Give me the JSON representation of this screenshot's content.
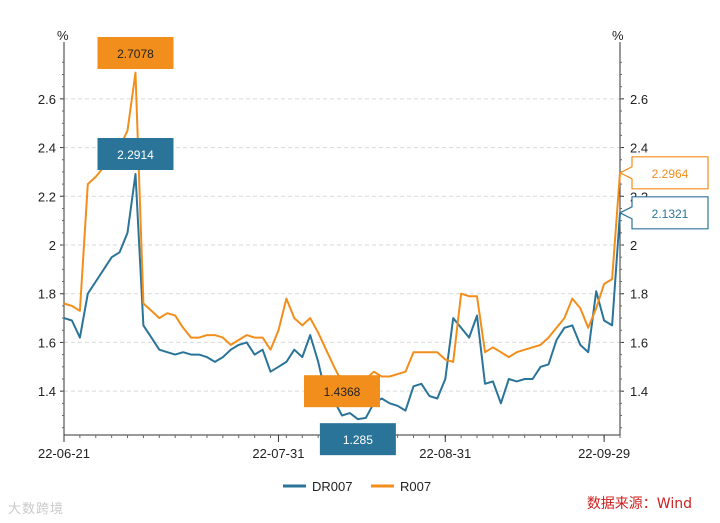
{
  "chart_data": {
    "type": "line",
    "y_unit": "%",
    "ylim": [
      1.22,
      2.78
    ],
    "yticks": [
      1.4,
      1.6,
      1.8,
      2,
      2.2,
      2.4,
      2.6
    ],
    "ytick_labels": [
      "1.4",
      "1.6",
      "1.8",
      "2",
      "2.2",
      "2.4",
      "2.6"
    ],
    "grid": true,
    "x_labels": [
      "22-06-21",
      "22-07-31",
      "22-08-31",
      "22-09-29"
    ],
    "x_tick_index": [
      0,
      27,
      48,
      68
    ],
    "legend_position": "bottom",
    "series": [
      {
        "name": "DR007",
        "color": "#2b7499",
        "values": [
          1.7,
          1.69,
          1.62,
          1.8,
          1.85,
          1.9,
          1.95,
          1.97,
          2.05,
          2.2914,
          1.67,
          1.62,
          1.57,
          1.56,
          1.55,
          1.56,
          1.55,
          1.55,
          1.54,
          1.52,
          1.54,
          1.57,
          1.59,
          1.6,
          1.55,
          1.57,
          1.48,
          1.5,
          1.52,
          1.57,
          1.54,
          1.63,
          1.52,
          1.38,
          1.36,
          1.3,
          1.31,
          1.285,
          1.29,
          1.35,
          1.37,
          1.35,
          1.34,
          1.32,
          1.42,
          1.43,
          1.38,
          1.37,
          1.45,
          1.7,
          1.66,
          1.62,
          1.71,
          1.43,
          1.44,
          1.35,
          1.45,
          1.44,
          1.45,
          1.45,
          1.5,
          1.51,
          1.61,
          1.66,
          1.67,
          1.59,
          1.56,
          1.81,
          1.69,
          1.67,
          2.1321
        ],
        "labels": [
          {
            "point": 9,
            "text": "2.2914"
          },
          {
            "point": 37,
            "text": "1.285"
          },
          {
            "point": 70,
            "text": "2.1321"
          }
        ]
      },
      {
        "name": "R007",
        "color": "#f28e1c",
        "values": [
          1.76,
          1.75,
          1.73,
          2.25,
          2.28,
          2.32,
          2.35,
          2.4,
          2.47,
          2.7078,
          1.76,
          1.73,
          1.7,
          1.72,
          1.71,
          1.66,
          1.62,
          1.62,
          1.63,
          1.63,
          1.62,
          1.59,
          1.61,
          1.63,
          1.62,
          1.62,
          1.57,
          1.65,
          1.78,
          1.7,
          1.67,
          1.7,
          1.64,
          1.57,
          1.5,
          1.4368,
          1.44,
          1.44,
          1.45,
          1.48,
          1.46,
          1.46,
          1.47,
          1.48,
          1.56,
          1.56,
          1.56,
          1.56,
          1.53,
          1.52,
          1.8,
          1.79,
          1.79,
          1.56,
          1.58,
          1.56,
          1.54,
          1.56,
          1.57,
          1.58,
          1.59,
          1.62,
          1.66,
          1.7,
          1.78,
          1.74,
          1.66,
          1.74,
          1.84,
          1.86,
          2.2964
        ],
        "labels": [
          {
            "point": 9,
            "text": "2.7078"
          },
          {
            "point": 35,
            "text": "1.4368"
          },
          {
            "point": 70,
            "text": "2.2964"
          }
        ]
      }
    ]
  },
  "source_text": "数据来源：Wind",
  "watermark_text": "大数跨境"
}
